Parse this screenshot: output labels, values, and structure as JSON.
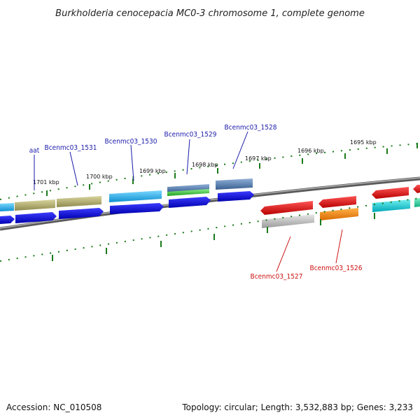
{
  "title": "Burkholderia cenocepacia MC0-3 chromosome 1, complete genome",
  "footer": {
    "accession": "Accession: NC_010508",
    "topology": "Topology: circular; Length: 3,532,883 bp; Genes: 3,233"
  },
  "scale_labels": [
    "1701 kbp",
    "1700 kbp",
    "1699 kbp",
    "1698 kbp",
    "1697 kbp",
    "1696 kbp",
    "1695 kbp"
  ],
  "colors": {
    "forward_label": "#1a1aaa",
    "reverse_label": "#cc1111",
    "backbone": "#777777",
    "tick": "#1a7a1a",
    "cds": "#0a0aee"
  },
  "forward_genes": [
    {
      "label": "aat",
      "feature_color": "#b5b172"
    },
    {
      "label": "Bcenmc03_1531",
      "feature_color": "#b5b172"
    },
    {
      "label": "Bcenmc03_1530",
      "feature_color": "#27b8f0"
    },
    {
      "label": "Bcenmc03_1529",
      "feature_color": "#5a86c0"
    },
    {
      "label": "Bcenmc03_1528",
      "feature_color": "#4a6fa0"
    }
  ],
  "reverse_genes": [
    {
      "label": "Bcenmc03_1527",
      "feature_color": "#ee1111"
    },
    {
      "label": "Bcenmc03_1526",
      "feature_color": "#ee1111"
    }
  ]
}
